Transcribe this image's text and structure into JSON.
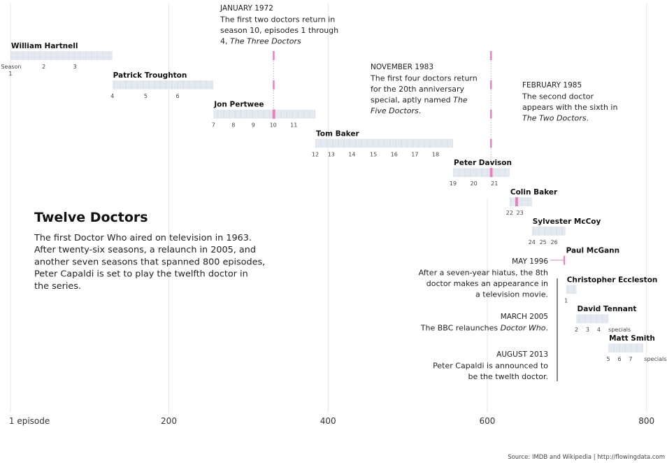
{
  "title": "Twelve Doctors",
  "intro_lines": [
    "The first Doctor Who aired on television in 1963.",
    "After twenty-six seasons, a relaunch in 2005, and",
    "another seven seasons that spanned 800 episodes,",
    "Peter Capaldi is set to play the twelfth doctor in",
    "the series."
  ],
  "source": "Source: IMDB and Wikipedia  |  http://flowingdata.com",
  "colors": {
    "episode": "#d6dee8",
    "highlight": "#ee7fbd",
    "grid": "#e6e6e6",
    "annotation_line": "#555555"
  },
  "chart_data": {
    "type": "timeline",
    "xlabel_first": "1 episode",
    "x_ticks": [
      200,
      400,
      600,
      800
    ],
    "xlim": [
      1,
      800
    ],
    "season_label_word": "Season",
    "doctors": [
      {
        "name": "William Hartnell",
        "start": 1,
        "end": 128,
        "season_labels": [
          {
            "label": "1",
            "ep": 1
          },
          {
            "label": "2",
            "ep": 43
          },
          {
            "label": "3",
            "ep": 82
          }
        ]
      },
      {
        "name": "Patrick Troughton",
        "start": 129,
        "end": 255,
        "season_labels": [
          {
            "label": "4",
            "ep": 129
          },
          {
            "label": "5",
            "ep": 171
          },
          {
            "label": "6",
            "ep": 211
          }
        ]
      },
      {
        "name": "Jon Pertwee",
        "start": 256,
        "end": 383,
        "season_labels": [
          {
            "label": "7",
            "ep": 256
          },
          {
            "label": "8",
            "ep": 281
          },
          {
            "label": "9",
            "ep": 306
          },
          {
            "label": "10",
            "ep": 331
          },
          {
            "label": "11",
            "ep": 357
          }
        ]
      },
      {
        "name": "Tom Baker",
        "start": 384,
        "end": 556,
        "season_labels": [
          {
            "label": "12",
            "ep": 384
          },
          {
            "label": "13",
            "ep": 404
          },
          {
            "label": "14",
            "ep": 430
          },
          {
            "label": "15",
            "ep": 457
          },
          {
            "label": "16",
            "ep": 483
          },
          {
            "label": "17",
            "ep": 509
          },
          {
            "label": "18",
            "ep": 535
          }
        ]
      },
      {
        "name": "Peter Davison",
        "start": 557,
        "end": 627,
        "season_labels": [
          {
            "label": "19",
            "ep": 557
          },
          {
            "label": "20",
            "ep": 583
          },
          {
            "label": "21",
            "ep": 609
          }
        ]
      },
      {
        "name": "Colin Baker",
        "start": 628,
        "end": 655,
        "season_labels": [
          {
            "label": "22",
            "ep": 628
          },
          {
            "label": "23",
            "ep": 641
          }
        ]
      },
      {
        "name": "Sylvester McCoy",
        "start": 656,
        "end": 697,
        "season_labels": [
          {
            "label": "24",
            "ep": 656
          },
          {
            "label": "25",
            "ep": 670
          },
          {
            "label": "26",
            "ep": 684
          }
        ]
      },
      {
        "name": "Paul McGann",
        "start": 698,
        "end": 698,
        "season_labels": []
      },
      {
        "name": "Christopher Eccleston",
        "start": 699,
        "end": 711,
        "season_labels": [
          {
            "label": "1",
            "ep": 699
          }
        ]
      },
      {
        "name": "David Tennant",
        "start": 712,
        "end": 751,
        "season_labels": [
          {
            "label": "2",
            "ep": 712
          },
          {
            "label": "3",
            "ep": 726
          },
          {
            "label": "4",
            "ep": 740
          },
          {
            "label": "specials",
            "ep": 752
          }
        ]
      },
      {
        "name": "Matt Smith",
        "start": 752,
        "end": 795,
        "season_labels": [
          {
            "label": "5",
            "ep": 752
          },
          {
            "label": "6",
            "ep": 766
          },
          {
            "label": "7",
            "ep": 780
          },
          {
            "label": "specials",
            "ep": 797
          }
        ]
      }
    ],
    "highlights": [
      {
        "episode": 331,
        "rows": [
          0,
          1,
          2
        ],
        "bar_rows": [
          2
        ]
      },
      {
        "episode": 604,
        "rows": [
          0,
          1,
          2,
          3
        ],
        "bar_rows": [
          4
        ]
      },
      {
        "episode": 636,
        "rows": [
          5
        ],
        "bar_rows": [
          5
        ]
      }
    ],
    "annotations": [
      {
        "date": "JANUARY 1972",
        "lines": [
          [
            {
              "t": "The first two doctors return in"
            }
          ],
          [
            {
              "t": "season 10, episodes 1 through"
            }
          ],
          [
            {
              "t": "4, "
            },
            {
              "t": "The Three Doctors",
              "i": true
            }
          ]
        ]
      },
      {
        "date": "NOVEMBER 1983",
        "lines": [
          [
            {
              "t": "The first four doctors return"
            }
          ],
          [
            {
              "t": "for the 20th anniversary"
            }
          ],
          [
            {
              "t": "special, aptly named "
            },
            {
              "t": "The",
              "i": true
            }
          ],
          [
            {
              "t": "Five Doctors",
              "i": true
            },
            {
              "t": "."
            }
          ]
        ]
      },
      {
        "date": "FEBRUARY 1985",
        "lines": [
          [
            {
              "t": "The second doctor"
            }
          ],
          [
            {
              "t": "appears with the sixth in"
            }
          ],
          [
            {
              "t": "The Two Doctors",
              "i": true
            },
            {
              "t": "."
            }
          ]
        ]
      },
      {
        "date": "MAY 1996",
        "lines": [
          [
            {
              "t": "After a seven-year hiatus, the 8th"
            }
          ],
          [
            {
              "t": "doctor makes an appearance in"
            }
          ],
          [
            {
              "t": "a television movie."
            }
          ]
        ]
      },
      {
        "date": "MARCH 2005",
        "lines": [
          [
            {
              "t": "The BBC relaunches "
            },
            {
              "t": "Doctor Who",
              "i": true
            },
            {
              "t": "."
            }
          ]
        ]
      },
      {
        "date": "AUGUST 2013",
        "lines": [
          [
            {
              "t": "Peter Capaldi is announced to"
            }
          ],
          [
            {
              "t": "be the twelth doctor."
            }
          ]
        ]
      }
    ]
  }
}
